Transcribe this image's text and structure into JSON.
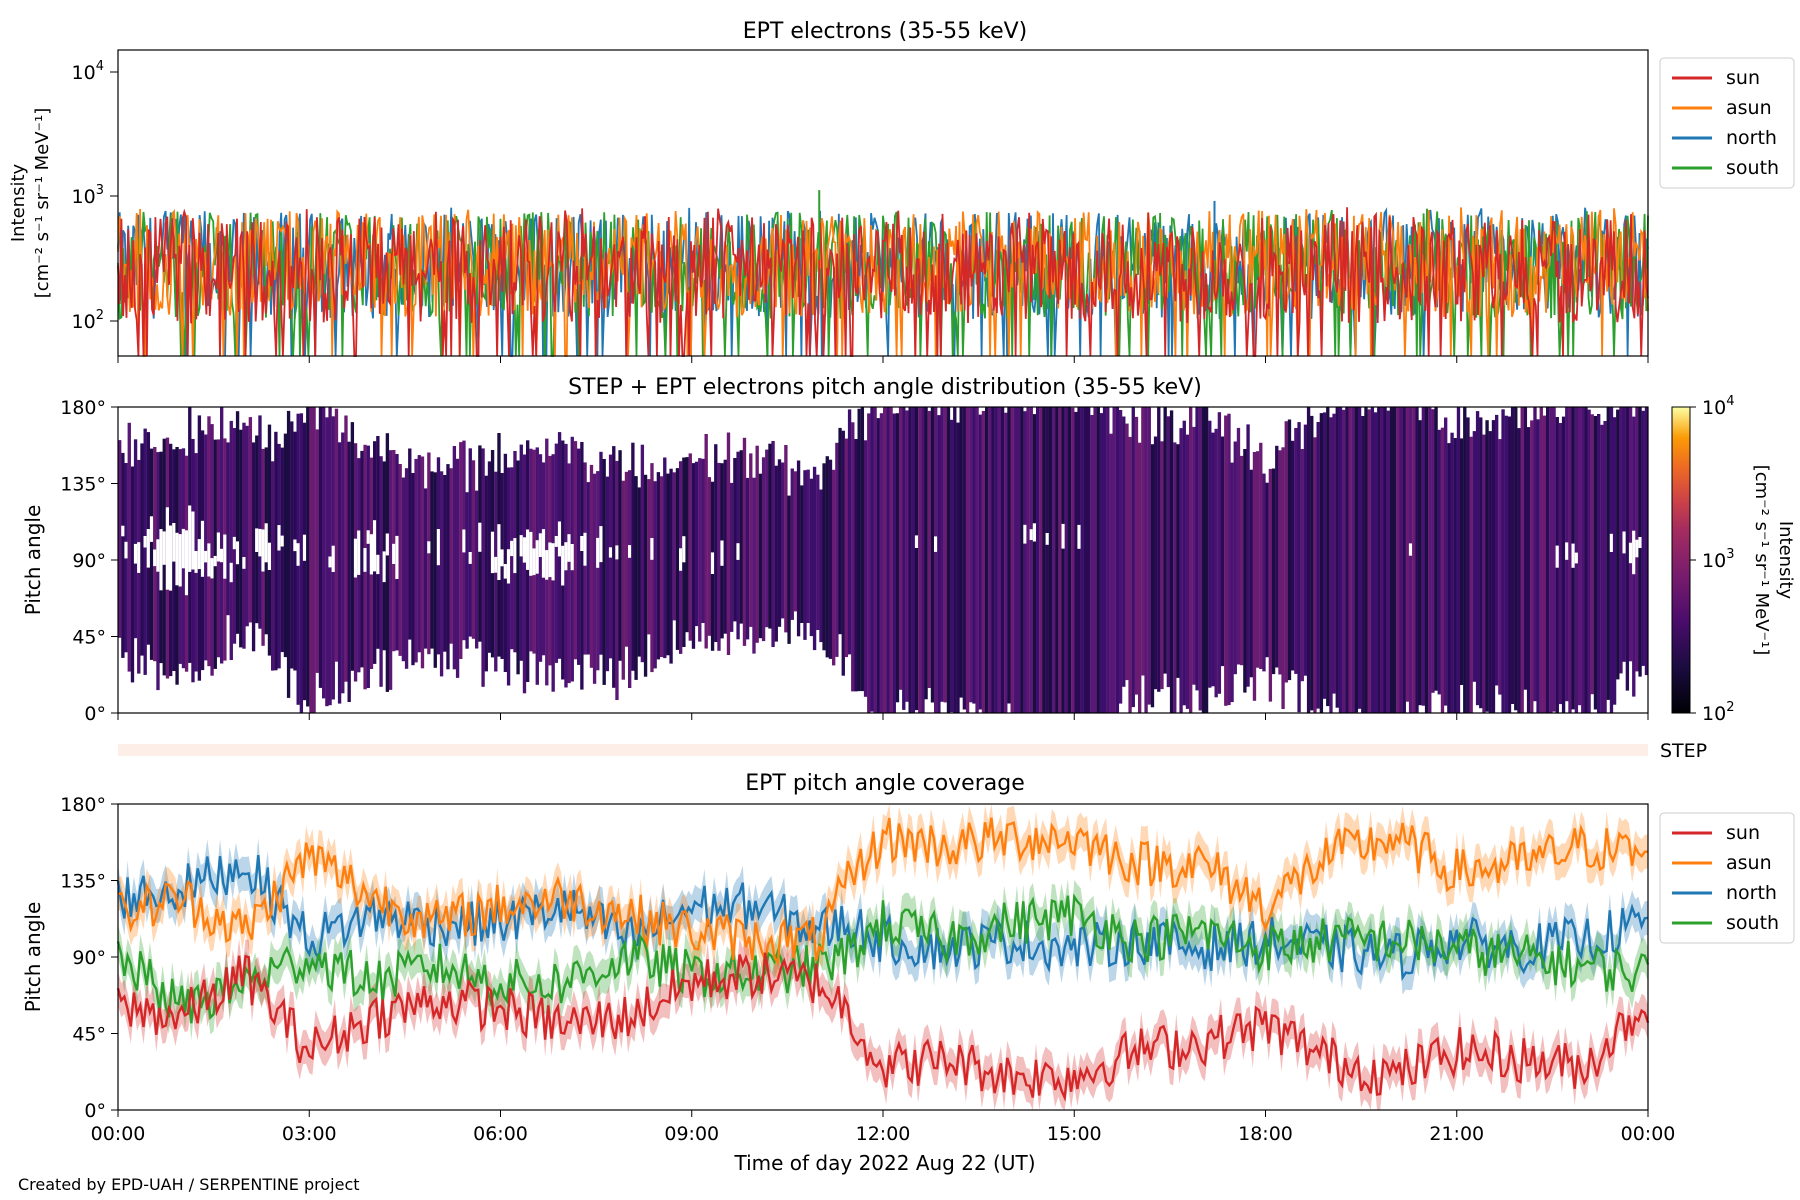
{
  "figure": {
    "credit": "Created by EPD-UAH / SERPENTINE project",
    "xlabel": "Time of day 2022 Aug 22 (UT)",
    "xticks": [
      "00:00",
      "03:00",
      "06:00",
      "09:00",
      "12:00",
      "15:00",
      "18:00",
      "21:00",
      "00:00"
    ]
  },
  "colors": {
    "sun": "#d62728",
    "asun": "#ff7f0e",
    "north": "#1f77b4",
    "south": "#2ca02c",
    "step_band": "#fdeee8"
  },
  "chart_data": [
    {
      "type": "line",
      "title": "EPT electrons (35-55 keV)",
      "ylabel_line1": "Intensity",
      "ylabel_line2": "[cm⁻² s⁻¹ sr⁻¹ MeV⁻¹]",
      "yscale": "log",
      "ylim": [
        50,
        15000
      ],
      "yticks": [
        {
          "value": 100,
          "base": "10",
          "exp": "2"
        },
        {
          "value": 1000,
          "base": "10",
          "exp": "3"
        },
        {
          "value": 10000,
          "base": "10",
          "exp": "4"
        }
      ],
      "xlim_hours": [
        0,
        24
      ],
      "legend_position": "outside-right",
      "series": [
        {
          "name": "sun",
          "color": "#d62728",
          "typical_range": [
            60,
            600
          ],
          "median": 250
        },
        {
          "name": "asun",
          "color": "#ff7f0e",
          "typical_range": [
            60,
            700
          ],
          "median": 280
        },
        {
          "name": "north",
          "color": "#1f77b4",
          "typical_range": [
            60,
            700
          ],
          "median": 270
        },
        {
          "name": "south",
          "color": "#2ca02c",
          "typical_range": [
            60,
            700
          ],
          "median": 270
        }
      ],
      "peak_values": [
        {
          "time_hours": 11.0,
          "value": 1100
        },
        {
          "time_hours": 17.2,
          "value": 900
        }
      ]
    },
    {
      "type": "heatmap",
      "title": "STEP + EPT electrons pitch angle distribution (35-55 keV)",
      "ylabel": "Pitch angle",
      "ylim": [
        0,
        180
      ],
      "yticks": [
        "0°",
        "45°",
        "90°",
        "135°",
        "180°"
      ],
      "colorbar": {
        "label_line1": "Intensity",
        "label_line2": "[cm⁻² s⁻¹ sr⁻¹ MeV⁻¹]",
        "scale": "log",
        "range": [
          100,
          10000
        ],
        "ticks": [
          {
            "base": "10",
            "exp": "2"
          },
          {
            "base": "10",
            "exp": "3"
          },
          {
            "base": "10",
            "exp": "4"
          }
        ],
        "colormap": "inferno"
      },
      "typical_intensity": 250,
      "note_values": "dark purple stripes following the four EPT telescope pitch-angle coverages"
    },
    {
      "type": "line",
      "title": "STEP",
      "label": "STEP",
      "note_values": "thin pale band, no data"
    },
    {
      "type": "line",
      "title": "EPT pitch angle coverage",
      "ylabel": "Pitch angle",
      "ylim": [
        0,
        180
      ],
      "yticks": [
        "0°",
        "45°",
        "90°",
        "135°",
        "180°"
      ],
      "legend_position": "outside-right",
      "series": [
        {
          "name": "sun",
          "color": "#d62728",
          "x": [
            0,
            1,
            2,
            3,
            4,
            5,
            6,
            7,
            8,
            9,
            10,
            11,
            11.4,
            12,
            13,
            14,
            15,
            16,
            17,
            18,
            19,
            20,
            21,
            22,
            23,
            24
          ],
          "values": [
            60,
            55,
            80,
            35,
            55,
            65,
            60,
            50,
            55,
            75,
            80,
            75,
            60,
            25,
            30,
            20,
            20,
            35,
            40,
            50,
            30,
            20,
            35,
            30,
            25,
            65
          ]
        },
        {
          "name": "asun",
          "color": "#ff7f0e",
          "x": [
            0,
            1,
            2,
            3,
            4,
            5,
            6,
            7,
            8,
            9,
            10,
            11,
            11.4,
            12,
            13,
            14,
            15,
            16,
            17,
            18,
            19,
            20,
            21,
            22,
            23,
            24
          ],
          "values": [
            115,
            125,
            105,
            150,
            125,
            110,
            120,
            125,
            115,
            105,
            100,
            100,
            130,
            160,
            155,
            160,
            160,
            145,
            145,
            120,
            150,
            160,
            140,
            145,
            155,
            150
          ]
        },
        {
          "name": "north",
          "color": "#1f77b4",
          "x": [
            0,
            1,
            2,
            3,
            4,
            5,
            6,
            7,
            8,
            9,
            10,
            11,
            11.4,
            12,
            13,
            14,
            15,
            16,
            17,
            18,
            19,
            20,
            21,
            22,
            23,
            24
          ],
          "values": [
            125,
            130,
            145,
            100,
            115,
            110,
            110,
            120,
            100,
            120,
            120,
            105,
            110,
            100,
            95,
            100,
            95,
            100,
            95,
            100,
            95,
            90,
            100,
            95,
            100,
            110
          ]
        },
        {
          "name": "south",
          "color": "#2ca02c",
          "x": [
            0,
            1,
            2,
            3,
            4,
            5,
            6,
            7,
            8,
            9,
            10,
            11,
            11.4,
            12,
            13,
            14,
            15,
            16,
            17,
            18,
            19,
            20,
            21,
            22,
            23,
            24
          ],
          "values": [
            90,
            60,
            75,
            90,
            75,
            85,
            75,
            75,
            90,
            80,
            80,
            85,
            90,
            110,
            100,
            110,
            115,
            100,
            105,
            95,
            100,
            100,
            95,
            90,
            85,
            80
          ]
        }
      ]
    }
  ]
}
